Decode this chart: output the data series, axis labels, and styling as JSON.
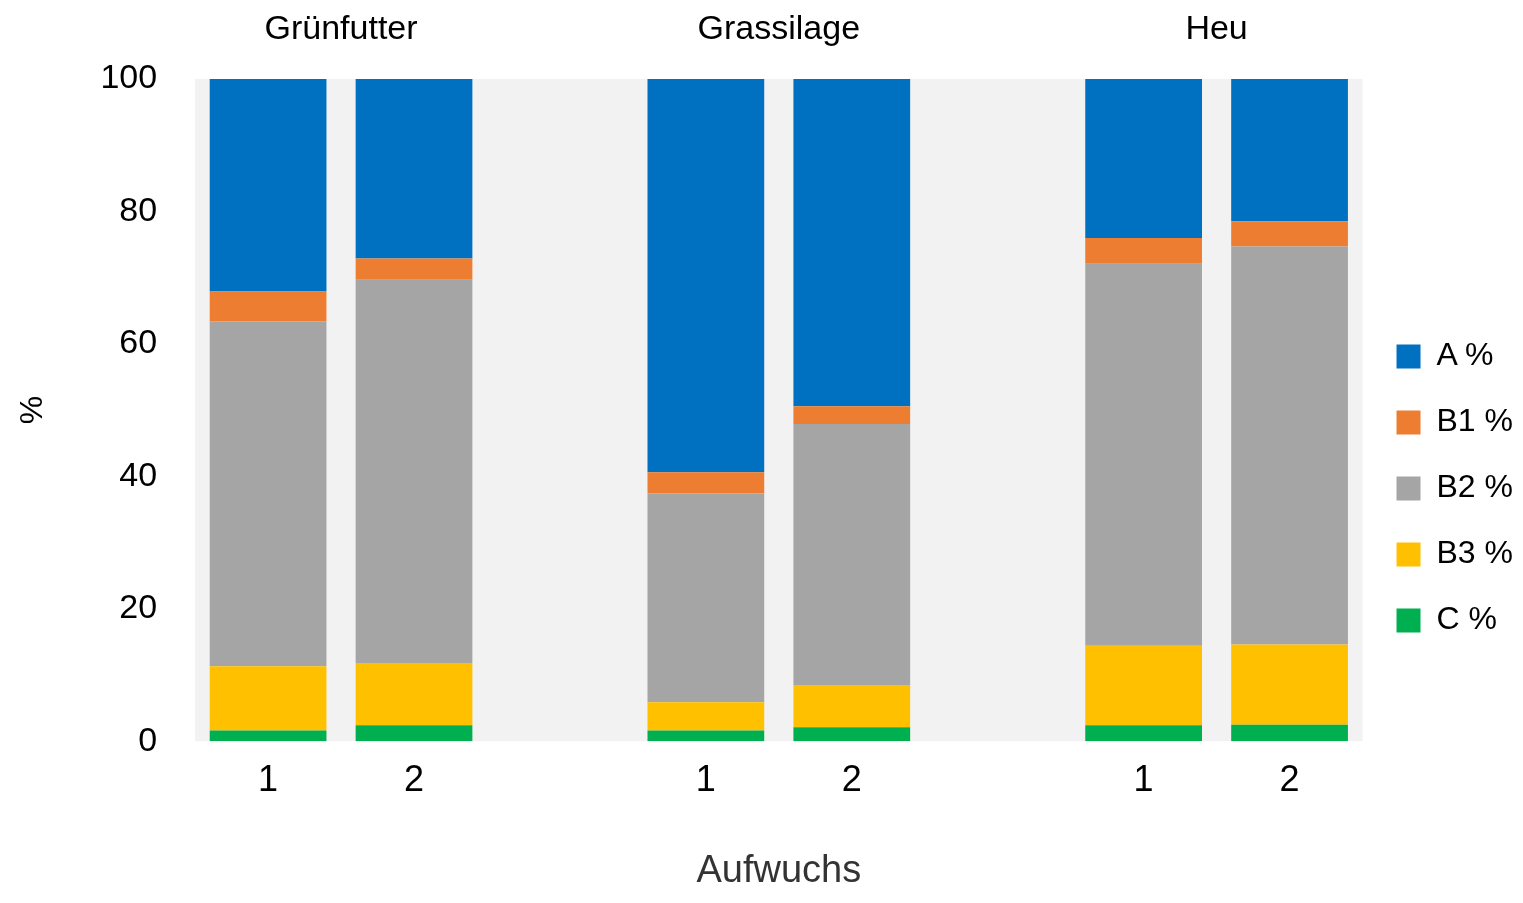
{
  "chart_data": {
    "type": "bar",
    "stacked": true,
    "categories": [
      "1",
      "2",
      null,
      "1",
      "2",
      null,
      "1",
      "2"
    ],
    "xlabel": "Aufwuchs",
    "ylabel": "%",
    "annotations": [
      "Grünfutter",
      "Grassilage",
      "Heu"
    ],
    "series": [
      {
        "name": "C %",
        "color": "#00b050",
        "values": [
          1.6,
          2.4,
          null,
          1.6,
          2.1,
          null,
          2.4,
          2.5
        ]
      },
      {
        "name": "B3 %",
        "color": "#ffc000",
        "values": [
          9.7,
          9.4,
          null,
          4.3,
          6.4,
          null,
          12.0,
          12.1
        ]
      },
      {
        "name": "B2 %",
        "color": "#a5a5a5",
        "values": [
          52.1,
          57.9,
          null,
          31.5,
          39.4,
          null,
          57.7,
          60.1
        ]
      },
      {
        "name": "B1 %",
        "color": "#ed7d31",
        "values": [
          4.5,
          3.2,
          null,
          3.2,
          2.7,
          null,
          3.9,
          3.8
        ]
      },
      {
        "name": "A %",
        "color": "#0070c0",
        "values": [
          32.1,
          27.1,
          null,
          59.4,
          49.4,
          null,
          24.0,
          21.5
        ]
      }
    ],
    "ylim": [
      0,
      100
    ],
    "yticks": [
      0,
      20,
      40,
      60,
      80,
      100
    ],
    "grid": false,
    "legend": "right"
  }
}
